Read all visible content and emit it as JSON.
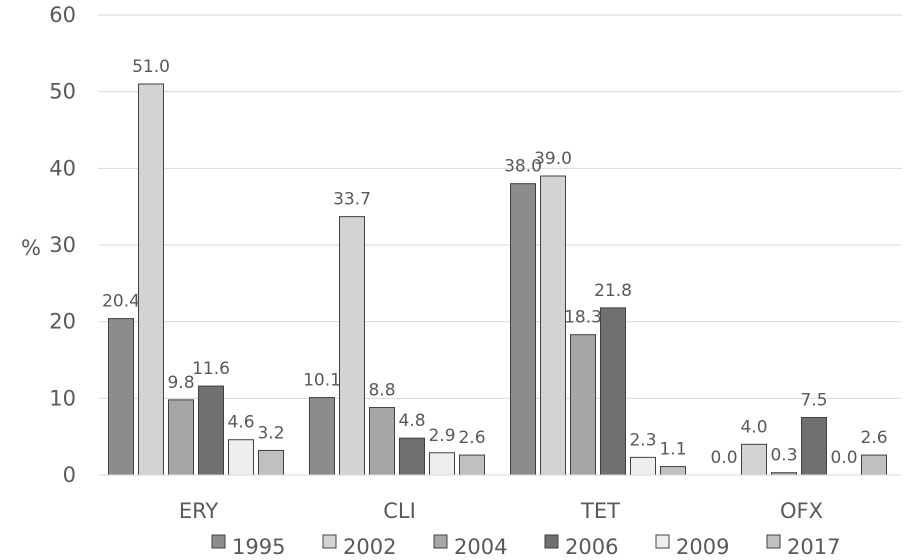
{
  "chart_data": {
    "type": "bar",
    "title": "",
    "xlabel": "",
    "ylabel": "%",
    "ylim": [
      0,
      60
    ],
    "yticks": [
      "0",
      "10",
      "20",
      "30",
      "40",
      "50",
      "60"
    ],
    "grid": true,
    "legend_position": "bottom",
    "categories": [
      "ERY",
      "CLI",
      "TET",
      "OFX"
    ],
    "series": [
      {
        "name": "1995",
        "color": "#8c8c8c",
        "values": [
          20.4,
          10.1,
          38.0,
          0.0
        ],
        "labels": [
          "20.4",
          "10.1",
          "38.0",
          "0.0"
        ]
      },
      {
        "name": "2002",
        "color": "#d3d3d3",
        "values": [
          51.0,
          33.7,
          39.0,
          4.0
        ],
        "labels": [
          "51.0",
          "33.7",
          "39.0",
          "4.0"
        ]
      },
      {
        "name": "2004",
        "color": "#a6a6a6",
        "values": [
          9.8,
          8.8,
          18.3,
          0.3
        ],
        "labels": [
          "9.8",
          "8.8",
          "18.3",
          "0.3"
        ]
      },
      {
        "name": "2006",
        "color": "#707070",
        "values": [
          11.6,
          4.8,
          21.8,
          7.5
        ],
        "labels": [
          "11.6",
          "4.8",
          "21.8",
          "7.5"
        ]
      },
      {
        "name": "2009",
        "color": "#eeeeee",
        "values": [
          4.6,
          2.9,
          2.3,
          0.0
        ],
        "labels": [
          "4.6",
          "2.9",
          "2.3",
          "0.0"
        ]
      },
      {
        "name": "2017",
        "color": "#c0c0c0",
        "values": [
          3.2,
          2.6,
          1.1,
          2.6
        ],
        "labels": [
          "3.2",
          "2.6",
          "1.1",
          "2.6"
        ]
      }
    ]
  }
}
